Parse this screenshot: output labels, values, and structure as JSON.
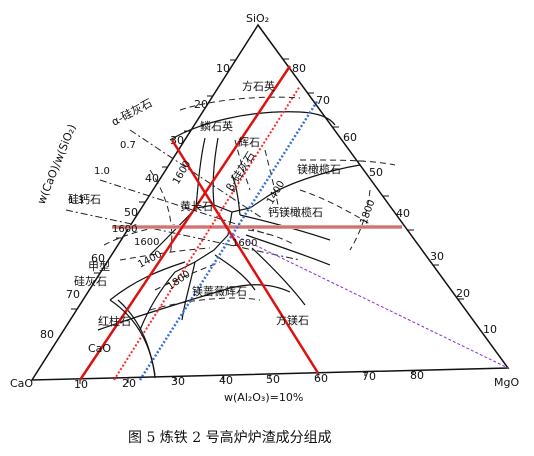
{
  "vertices": {
    "top": "SiO₂",
    "left": "CaO",
    "right": "MgO"
  },
  "bottom_axis_label": "w(Al₂O₃)=10%",
  "left_axis_label": "w(CaO)/w(SiO₂)",
  "caption": "图 5   炼铁 2 号高炉炉渣成分组成",
  "ticks": {
    "bottom": [
      "10",
      "20",
      "30",
      "40",
      "50",
      "60",
      "70",
      "80"
    ],
    "left": [
      "10",
      "20",
      "30",
      "40",
      "50",
      "60",
      "70",
      "80"
    ],
    "right": [
      "80",
      "70",
      "60",
      "50",
      "40",
      "30",
      "20",
      "10"
    ]
  },
  "ratio_labels": [
    "0.7",
    "1.0",
    "1.3"
  ],
  "phases": {
    "cristobalite": "方石英",
    "tridymite": "鳞石英",
    "a_wollastonite": "α-硅灰石",
    "pyroxene": "辉石",
    "b_wollastonite": "β-硅灰石",
    "forsterite": "镁橄榄石",
    "melilite": "黄长石",
    "monticellite": "钙镁橄榄石",
    "calcium_silicate": "硅钙石",
    "merwinite": "镁蔷薇辉石",
    "alpha_c2s_a": "甲型",
    "alpha_c2s_b": "硅灰石",
    "larnite": "红柱石",
    "periclase": "方镁石",
    "lime": "CaO"
  },
  "isotherms": {
    "t1600a": "1600",
    "t1400a": "1400",
    "t1400b": "1400",
    "t1600b": "1600",
    "t1800": "1800",
    "t1600c": "1600",
    "t1800b": "1800",
    "t1600d": "1600"
  },
  "colors": {
    "red": "#e01010",
    "red_dotted": "#ff2a2a",
    "blue_dotted": "#3a6fd8",
    "pink": "#e89a9a",
    "purple": "#8a2be2",
    "axis": "#111111"
  }
}
